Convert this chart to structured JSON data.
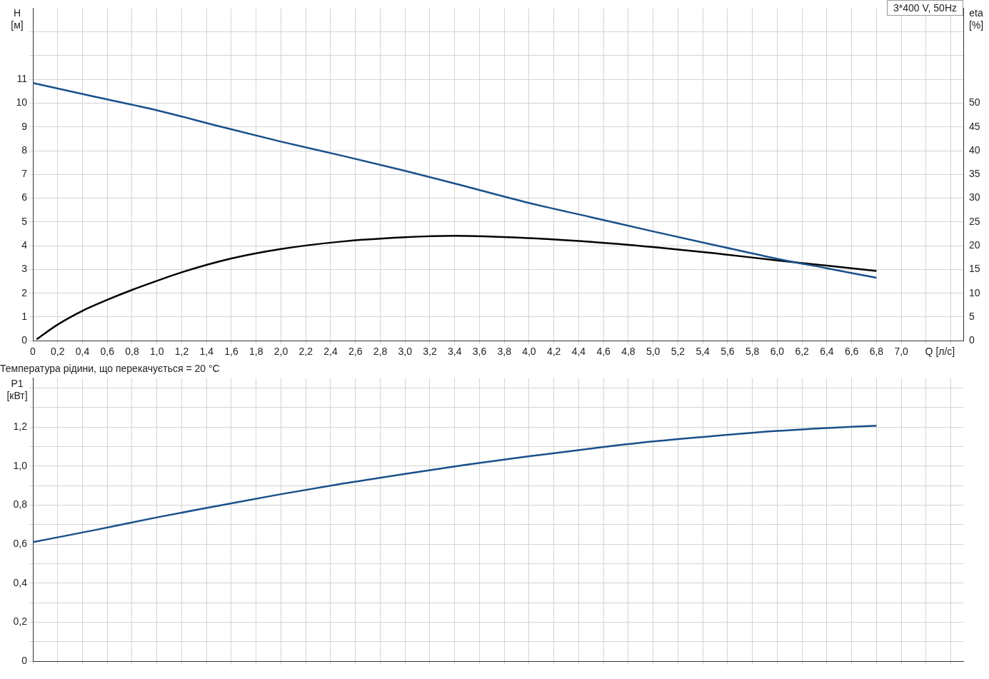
{
  "chart_data": [
    {
      "type": "line",
      "xlabel": "Q [л/с]",
      "ylabel": "H [м]",
      "y2label": "eta [%]",
      "annotations": [
        "3*400 V, 50Hz"
      ],
      "x": [
        0,
        0.5,
        1,
        1.5,
        2,
        2.5,
        3,
        3.4,
        4,
        4.5,
        5,
        5.5,
        6,
        6.4,
        6.8
      ],
      "series": [
        {
          "color": "#1a4f8a",
          "values": [
            10.85,
            10.27,
            9.7,
            9.03,
            8.38,
            7.78,
            7.15,
            6.62,
            5.8,
            5.2,
            4.6,
            4.02,
            3.45,
            3.05,
            2.65
          ]
        },
        {
          "color": "#000000",
          "axis": "y2",
          "x": [
            0.03,
            0.2,
            0.4,
            0.6,
            0.8,
            1,
            1.2,
            1.6,
            2,
            2.5,
            3,
            3.4,
            4,
            4.5,
            5,
            5.5,
            6,
            6.4,
            6.8
          ],
          "values": [
            0.3,
            3.4,
            6.3,
            8.6,
            10.7,
            12.6,
            14.4,
            17.3,
            19.3,
            20.9,
            21.8,
            22.1,
            21.6,
            20.8,
            19.7,
            18.4,
            16.9,
            15.8,
            14.7
          ]
        }
      ],
      "xlim": [
        0,
        7.5
      ],
      "xticks": [
        0,
        {
          "value": 0.2,
          "label": "0,2"
        },
        {
          "value": 0.4,
          "label": "0,4"
        },
        {
          "value": 0.6,
          "label": "0,6"
        },
        {
          "value": 0.8,
          "label": "0,8"
        },
        {
          "value": 1,
          "label": "1,0"
        },
        {
          "value": 1.2,
          "label": "1,2"
        },
        {
          "value": 1.4,
          "label": "1,4"
        },
        {
          "value": 1.6,
          "label": "1,6"
        },
        {
          "value": 1.8,
          "label": "1,8"
        },
        {
          "value": 2,
          "label": "2,0"
        },
        {
          "value": 2.2,
          "label": "2,2"
        },
        {
          "value": 2.4,
          "label": "2,4"
        },
        {
          "value": 2.6,
          "label": "2,6"
        },
        {
          "value": 2.8,
          "label": "2,8"
        },
        {
          "value": 3,
          "label": "3,0"
        },
        {
          "value": 3.2,
          "label": "3,2"
        },
        {
          "value": 3.4,
          "label": "3,4"
        },
        {
          "value": 3.6,
          "label": "3,6"
        },
        {
          "value": 3.8,
          "label": "3,8"
        },
        {
          "value": 4,
          "label": "4,0"
        },
        {
          "value": 4.2,
          "label": "4,2"
        },
        {
          "value": 4.4,
          "label": "4,4"
        },
        {
          "value": 4.6,
          "label": "4,6"
        },
        {
          "value": 4.8,
          "label": "4,8"
        },
        {
          "value": 5,
          "label": "5,0"
        },
        {
          "value": 5.2,
          "label": "5,2"
        },
        {
          "value": 5.4,
          "label": "5,4"
        },
        {
          "value": 5.6,
          "label": "5,6"
        },
        {
          "value": 5.8,
          "label": "5,8"
        },
        {
          "value": 6,
          "label": "6,0"
        },
        {
          "value": 6.2,
          "label": "6,2"
        },
        {
          "value": 6.4,
          "label": "6,4"
        },
        {
          "value": 6.6,
          "label": "6,6"
        },
        {
          "value": 6.8,
          "label": "6,8"
        },
        {
          "value": 7,
          "label": "7,0"
        },
        {
          "value": 7.2,
          "label": null
        },
        {
          "value": 7.4,
          "label": null
        }
      ],
      "ylim": [
        0,
        14
      ],
      "yticks": [
        0,
        1,
        2,
        3,
        4,
        5,
        6,
        7,
        8,
        9,
        10,
        11,
        {
          "value": 12,
          "label": null
        },
        {
          "value": 13,
          "label": null
        }
      ],
      "y2lim": [
        0,
        70
      ],
      "y2ticks": [
        0,
        5,
        10,
        15,
        20,
        25,
        30,
        35,
        40,
        45,
        50
      ],
      "grid": true,
      "marker": "none",
      "line_style": "solid"
    },
    {
      "type": "line",
      "title": "Температура рідини, що перекачується = 20 °C",
      "ylabel": "P1 [кВт]",
      "x": [
        0,
        0.5,
        1,
        1.5,
        2,
        2.5,
        3,
        3.5,
        4,
        4.5,
        5,
        5.5,
        6,
        6.4,
        6.8
      ],
      "series": [
        {
          "color": "#1a4f8a",
          "values": [
            0.61,
            0.672,
            0.737,
            0.797,
            0.856,
            0.91,
            0.96,
            1.007,
            1.05,
            1.09,
            1.126,
            1.155,
            1.18,
            1.195,
            1.207
          ]
        }
      ],
      "xlim": [
        0,
        7.5
      ],
      "xticks": [
        0,
        0.2,
        0.4,
        0.6,
        0.8,
        1,
        1.2,
        1.4,
        1.6,
        1.8,
        2,
        2.2,
        2.4,
        2.6,
        2.8,
        3,
        3.2,
        3.4,
        3.6,
        3.8,
        4,
        4.2,
        4.4,
        4.6,
        4.8,
        5,
        5.2,
        5.4,
        5.6,
        5.8,
        6,
        6.2,
        6.4,
        6.6,
        6.8,
        7,
        7.2,
        7.4
      ],
      "ylim": [
        0,
        1.45
      ],
      "yticks": [
        0,
        {
          "value": 0.1,
          "label": null
        },
        {
          "value": 0.2,
          "label": "0,2"
        },
        {
          "value": 0.3,
          "label": null
        },
        {
          "value": 0.4,
          "label": "0,4"
        },
        {
          "value": 0.5,
          "label": null
        },
        {
          "value": 0.6,
          "label": "0,6"
        },
        {
          "value": 0.7,
          "label": null
        },
        {
          "value": 0.8,
          "label": "0,8"
        },
        {
          "value": 0.9,
          "label": null
        },
        {
          "value": 1,
          "label": "1,0"
        },
        {
          "value": 1.1,
          "label": null
        },
        {
          "value": 1.2,
          "label": "1,2"
        },
        {
          "value": 1.3,
          "label": null
        },
        {
          "value": 1.4,
          "label": null
        }
      ],
      "grid": true,
      "marker": "none",
      "line_style": "solid",
      "tick_labels": "y"
    }
  ]
}
